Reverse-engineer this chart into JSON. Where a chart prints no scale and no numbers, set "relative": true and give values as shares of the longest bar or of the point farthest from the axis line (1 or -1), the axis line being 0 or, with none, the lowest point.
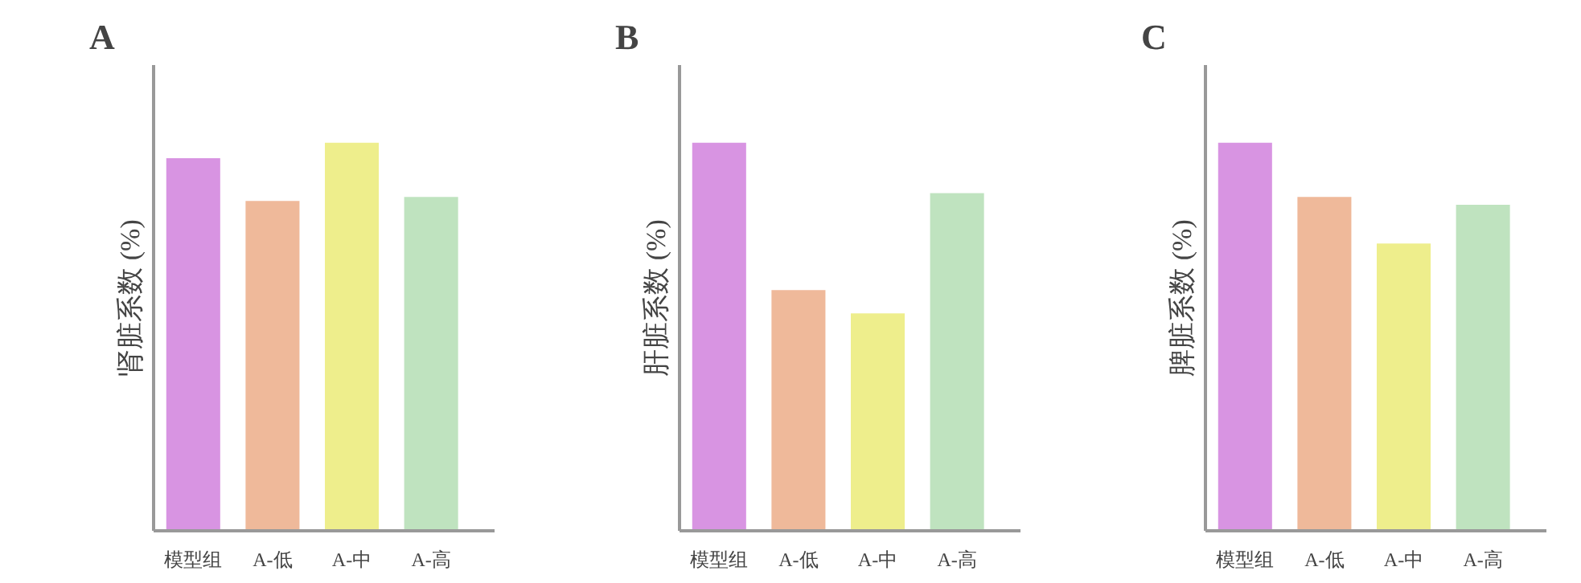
{
  "chart_data": [
    {
      "type": "bar",
      "title": "A",
      "ylabel": "肾脏系数 (%)",
      "categories": [
        "模型组",
        "A-低",
        "A-中",
        "A-高"
      ],
      "values": [
        0.96,
        0.85,
        1,
        0.86
      ],
      "colors": [
        "#d894e2",
        "#efb99a",
        "#eeee8c",
        "#bfe3bf"
      ],
      "relative": true
    },
    {
      "type": "bar",
      "title": "B",
      "ylabel": "肝脏系数 (%)",
      "categories": [
        "模型组",
        "A-低",
        "A-中",
        "A-高"
      ],
      "values": [
        1,
        0.62,
        0.56,
        0.87
      ],
      "colors": [
        "#d894e2",
        "#efb99a",
        "#eeee8c",
        "#bfe3bf"
      ],
      "relative": true
    },
    {
      "type": "bar",
      "title": "C",
      "ylabel": "脾脏系数 (%)",
      "categories": [
        "模型组",
        "A-低",
        "A-中",
        "A-高"
      ],
      "values": [
        1,
        0.86,
        0.74,
        0.84
      ],
      "colors": [
        "#d894e2",
        "#efb99a",
        "#eeee8c",
        "#bfe3bf"
      ],
      "relative": true
    }
  ]
}
